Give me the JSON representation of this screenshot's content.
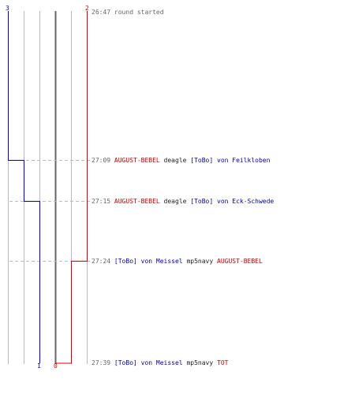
{
  "colors": {
    "team_red": "#dd0000",
    "team_blue": "#0000cc",
    "grid": "#bbbbbb",
    "axis": "#555555",
    "dash": "#bbbbbb"
  },
  "counters": {
    "blue_start": "3",
    "red_start": "2",
    "blue_end": "1",
    "red_end": "0"
  },
  "events": [
    {
      "time": "26:47",
      "parts": [
        {
          "text": "round started",
          "style": "time"
        }
      ]
    },
    {
      "time": "27:09",
      "parts": [
        {
          "text": "AUGUST-BEBEL",
          "style": "red"
        },
        {
          "text": "deagle",
          "style": "plain"
        },
        {
          "text": "[ToBo] von Feilkloben",
          "style": "blue"
        }
      ]
    },
    {
      "time": "27:15",
      "parts": [
        {
          "text": "AUGUST-BEBEL",
          "style": "red"
        },
        {
          "text": "deagle",
          "style": "plain"
        },
        {
          "text": "[ToBo] von Eck-Schwede",
          "style": "blue"
        }
      ]
    },
    {
      "time": "27:24",
      "parts": [
        {
          "text": "[ToBo] von Meissel",
          "style": "blue"
        },
        {
          "text": "mp5navy",
          "style": "plain"
        },
        {
          "text": "AUGUST-BEBEL",
          "style": "red"
        }
      ]
    },
    {
      "time": "27:39",
      "parts": [
        {
          "text": "[ToBo] von Meissel",
          "style": "blue"
        },
        {
          "text": "mp5navy",
          "style": "plain"
        },
        {
          "text": "TOT",
          "style": "red"
        }
      ]
    }
  ]
}
